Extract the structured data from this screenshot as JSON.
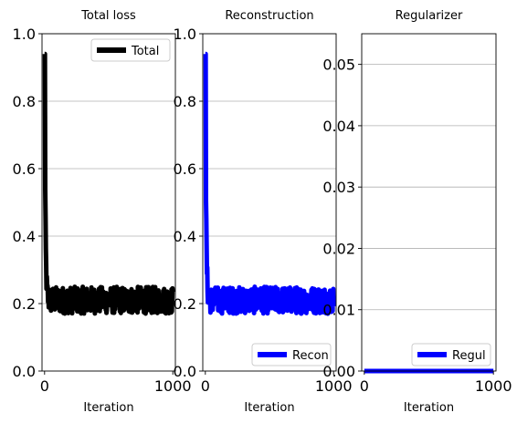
{
  "chart_data": [
    {
      "type": "line",
      "title": "Total loss",
      "xlabel": "Iteration",
      "ylabel": "",
      "xlim": [
        -20,
        1020
      ],
      "ylim": [
        0,
        1.0
      ],
      "x_ticks": [
        0,
        1000
      ],
      "x_tick_labels": [
        "0",
        "1000"
      ],
      "y_ticks": [
        0.0,
        0.2,
        0.4,
        0.6,
        0.8,
        1.0
      ],
      "y_tick_labels": [
        "0.0",
        "0.2",
        "0.4",
        "0.6",
        "0.8",
        "1.0"
      ],
      "grid": "y",
      "legend": "upper-right",
      "series": [
        {
          "name": "Total",
          "color": "#000000",
          "start_value": 0.94,
          "plateau_value": 0.21,
          "noise_band": [
            0.17,
            0.25
          ],
          "iterations": 1000
        }
      ]
    },
    {
      "type": "line",
      "title": "Reconstruction",
      "xlabel": "Iteration",
      "ylabel": "",
      "xlim": [
        -20,
        1020
      ],
      "ylim": [
        0,
        1.0
      ],
      "x_ticks": [
        0,
        1000
      ],
      "x_tick_labels": [
        "0",
        "1000"
      ],
      "y_ticks": [
        0.0,
        0.2,
        0.4,
        0.6,
        0.8,
        1.0
      ],
      "y_tick_labels": [
        "0.0",
        "0.2",
        "0.4",
        "0.6",
        "0.8",
        "1.0"
      ],
      "grid": "y",
      "legend": "lower-right",
      "series": [
        {
          "name": "Recon",
          "color": "#0000ff",
          "start_value": 0.94,
          "plateau_value": 0.21,
          "noise_band": [
            0.17,
            0.25
          ],
          "iterations": 1000
        }
      ]
    },
    {
      "type": "line",
      "title": "Regularizer",
      "xlabel": "Iteration",
      "ylabel": "",
      "xlim": [
        -20,
        1020
      ],
      "ylim": [
        0,
        0.055
      ],
      "x_ticks": [
        0,
        1000
      ],
      "x_tick_labels": [
        "0",
        "1000"
      ],
      "y_ticks": [
        0.0,
        0.01,
        0.02,
        0.03,
        0.04,
        0.05
      ],
      "y_tick_labels": [
        "0.00",
        "0.01",
        "0.02",
        "0.03",
        "0.04",
        "0.05"
      ],
      "grid": "y",
      "legend": "lower-right",
      "series": [
        {
          "name": "Regul",
          "color": "#0000ff",
          "start_value": 0.0,
          "plateau_value": 0.0,
          "noise_band": [
            0.0,
            0.0
          ],
          "iterations": 1000
        }
      ]
    }
  ]
}
